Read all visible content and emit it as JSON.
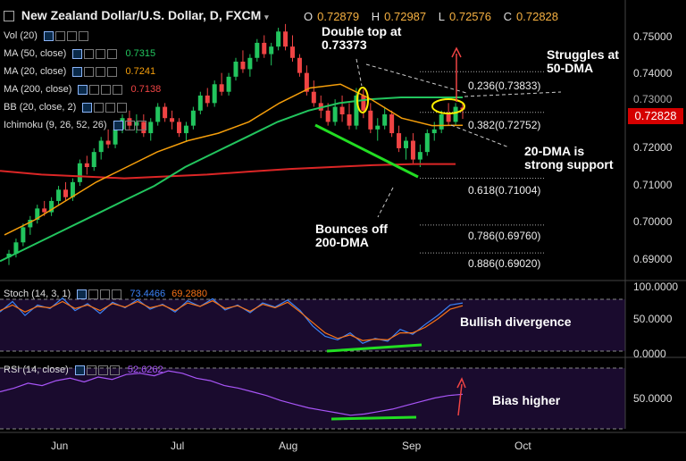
{
  "header": {
    "title": "New Zealand Dollar/U.S. Dollar, D, FXCM",
    "ohlc": {
      "o_label": "O",
      "o": "0.72879",
      "h_label": "H",
      "h": "0.72987",
      "l_label": "L",
      "l": "0.72576",
      "c_label": "C",
      "c": "0.72828"
    }
  },
  "indicators": {
    "vol": {
      "label": "Vol (20)"
    },
    "ma50": {
      "label": "MA (50, close)",
      "value": "0.7315",
      "color": "#22c55e"
    },
    "ma20": {
      "label": "MA (20, close)",
      "value": "0.7241",
      "color": "#f59e0b"
    },
    "ma200": {
      "label": "MA (200, close)",
      "value": "0.7138",
      "color": "#ef4444"
    },
    "bb": {
      "label": "BB (20, close, 2)"
    },
    "ichimoku": {
      "label": "Ichimoku (9, 26, 52, 26)"
    },
    "stoch": {
      "label": "Stoch (14, 3, 1)",
      "k": "73.4466",
      "d": "69.2880"
    },
    "rsi": {
      "label": "RSI (14, close)",
      "value": "52.6262"
    }
  },
  "annotations": {
    "double_top": "Double top at 0.73373",
    "struggles": "Struggles at 50-DMA",
    "support": "20-DMA is strong support",
    "bounces": "Bounces off 200-DMA",
    "divergence": "Bullish divergence",
    "bias": "Bias higher"
  },
  "fib_levels": [
    {
      "label": "0.236(0.73833)"
    },
    {
      "label": "0.382(0.72752)"
    },
    {
      "label": "0.618(0.71004)"
    },
    {
      "label": "0.786(0.69760)"
    },
    {
      "label": "0.886(0.69020)"
    }
  ],
  "price_axis": [
    "0.75000",
    "0.74000",
    "0.73000",
    "0.72000",
    "0.71000",
    "0.70000",
    "0.69000"
  ],
  "current_price": "0.72828",
  "stoch_axis": [
    "100.0000",
    "50.0000",
    "0.0000"
  ],
  "rsi_axis": [
    "50.0000"
  ],
  "x_axis": [
    "Jun",
    "Jul",
    "Aug",
    "Sep",
    "Oct"
  ],
  "colors": {
    "bull": "#22c55e",
    "bear": "#ef4444",
    "ma20": "#f59e0b",
    "ma50": "#22c55e",
    "ma200": "#dc2626",
    "stoch_k": "#3b82f6",
    "stoch_d": "#f97316",
    "rsi": "#a855f7",
    "panel_bg": "#1a0b2e",
    "trend": "#22dd22",
    "annotation": "#ffffff",
    "arrow": "#ef4444"
  },
  "chart_data": [
    {
      "type": "candlestick",
      "title": "New Zealand Dollar/U.S. Dollar, D, FXCM",
      "ylim": [
        0.685,
        0.755
      ],
      "x_ticks": [
        "Jun",
        "Jul",
        "Aug",
        "Sep",
        "Oct"
      ],
      "candles": [
        [
          0.689,
          0.691,
          0.687,
          0.69
        ],
        [
          0.69,
          0.694,
          0.689,
          0.693
        ],
        [
          0.693,
          0.698,
          0.692,
          0.697
        ],
        [
          0.697,
          0.7,
          0.695,
          0.699
        ],
        [
          0.699,
          0.703,
          0.698,
          0.702
        ],
        [
          0.702,
          0.704,
          0.7,
          0.701
        ],
        [
          0.701,
          0.705,
          0.7,
          0.704
        ],
        [
          0.704,
          0.708,
          0.703,
          0.707
        ],
        [
          0.707,
          0.709,
          0.704,
          0.705
        ],
        [
          0.705,
          0.71,
          0.704,
          0.709
        ],
        [
          0.709,
          0.715,
          0.708,
          0.714
        ],
        [
          0.714,
          0.716,
          0.711,
          0.713
        ],
        [
          0.713,
          0.718,
          0.712,
          0.717
        ],
        [
          0.717,
          0.721,
          0.715,
          0.72
        ],
        [
          0.72,
          0.723,
          0.718,
          0.719
        ],
        [
          0.719,
          0.724,
          0.718,
          0.723
        ],
        [
          0.723,
          0.727,
          0.722,
          0.726
        ],
        [
          0.726,
          0.728,
          0.723,
          0.724
        ],
        [
          0.724,
          0.727,
          0.722,
          0.725
        ],
        [
          0.725,
          0.727,
          0.721,
          0.722
        ],
        [
          0.722,
          0.726,
          0.72,
          0.725
        ],
        [
          0.725,
          0.73,
          0.724,
          0.729
        ],
        [
          0.729,
          0.73,
          0.725,
          0.726
        ],
        [
          0.726,
          0.728,
          0.723,
          0.725
        ],
        [
          0.725,
          0.726,
          0.721,
          0.722
        ],
        [
          0.722,
          0.725,
          0.72,
          0.724
        ],
        [
          0.724,
          0.729,
          0.723,
          0.728
        ],
        [
          0.728,
          0.733,
          0.727,
          0.732
        ],
        [
          0.732,
          0.734,
          0.729,
          0.73
        ],
        [
          0.73,
          0.736,
          0.729,
          0.735
        ],
        [
          0.735,
          0.738,
          0.732,
          0.733
        ],
        [
          0.733,
          0.738,
          0.732,
          0.737
        ],
        [
          0.737,
          0.742,
          0.736,
          0.741
        ],
        [
          0.741,
          0.744,
          0.738,
          0.739
        ],
        [
          0.739,
          0.743,
          0.737,
          0.742
        ],
        [
          0.742,
          0.747,
          0.741,
          0.746
        ],
        [
          0.746,
          0.748,
          0.742,
          0.743
        ],
        [
          0.743,
          0.746,
          0.74,
          0.745
        ],
        [
          0.745,
          0.75,
          0.744,
          0.749
        ],
        [
          0.749,
          0.751,
          0.744,
          0.745
        ],
        [
          0.745,
          0.748,
          0.741,
          0.742
        ],
        [
          0.742,
          0.743,
          0.737,
          0.738
        ],
        [
          0.738,
          0.74,
          0.732,
          0.733
        ],
        [
          0.733,
          0.736,
          0.729,
          0.73
        ],
        [
          0.73,
          0.732,
          0.726,
          0.728
        ],
        [
          0.728,
          0.73,
          0.724,
          0.725
        ],
        [
          0.725,
          0.731,
          0.724,
          0.729
        ],
        [
          0.729,
          0.732,
          0.725,
          0.727
        ],
        [
          0.727,
          0.73,
          0.723,
          0.724
        ],
        [
          0.724,
          0.734,
          0.723,
          0.732
        ],
        [
          0.732,
          0.7337,
          0.726,
          0.728
        ],
        [
          0.728,
          0.73,
          0.722,
          0.723
        ],
        [
          0.723,
          0.726,
          0.72,
          0.724
        ],
        [
          0.724,
          0.729,
          0.723,
          0.727
        ],
        [
          0.727,
          0.728,
          0.721,
          0.722
        ],
        [
          0.722,
          0.724,
          0.717,
          0.718
        ],
        [
          0.718,
          0.721,
          0.715,
          0.72
        ],
        [
          0.72,
          0.722,
          0.714,
          0.715
        ],
        [
          0.715,
          0.719,
          0.713,
          0.717
        ],
        [
          0.717,
          0.723,
          0.716,
          0.722
        ],
        [
          0.722,
          0.725,
          0.72,
          0.723
        ],
        [
          0.723,
          0.728,
          0.722,
          0.727
        ],
        [
          0.727,
          0.73,
          0.724,
          0.725
        ],
        [
          0.725,
          0.73,
          0.724,
          0.729
        ],
        [
          0.7288,
          0.7299,
          0.7258,
          0.7283
        ]
      ],
      "ma20": [
        0.695,
        0.699,
        0.704,
        0.709,
        0.713,
        0.717,
        0.72,
        0.722,
        0.725,
        0.73,
        0.734,
        0.735,
        0.731,
        0.726,
        0.724,
        0.7241
      ],
      "ma50": [
        0.688,
        0.692,
        0.696,
        0.7,
        0.704,
        0.708,
        0.713,
        0.717,
        0.721,
        0.725,
        0.728,
        0.73,
        0.731,
        0.7315,
        0.7315,
        0.7315
      ],
      "ma200": [
        0.712,
        0.711,
        0.7105,
        0.71,
        0.7105,
        0.711,
        0.7118,
        0.7125,
        0.713,
        0.7135,
        0.7138,
        0.7138
      ]
    },
    {
      "type": "line",
      "title": "Stoch (14, 3, 1)",
      "ylim": [
        0,
        100
      ],
      "series": [
        {
          "name": "%K",
          "values": [
            60,
            75,
            55,
            70,
            65,
            80,
            62,
            72,
            58,
            74,
            66,
            78,
            64,
            71,
            60,
            76,
            68,
            79,
            63,
            70,
            59,
            73,
            67,
            77,
            62,
            40,
            25,
            20,
            30,
            15,
            22,
            18,
            35,
            28,
            42,
            55,
            70,
            73
          ]
        },
        {
          "name": "%D",
          "values": [
            62,
            70,
            60,
            68,
            66,
            75,
            65,
            70,
            62,
            72,
            67,
            75,
            66,
            70,
            62,
            73,
            68,
            76,
            65,
            69,
            61,
            71,
            66,
            74,
            60,
            45,
            30,
            22,
            27,
            19,
            21,
            20,
            30,
            30,
            38,
            50,
            64,
            69
          ]
        }
      ]
    },
    {
      "type": "line",
      "title": "RSI (14, close)",
      "ylim": [
        25,
        80
      ],
      "series": [
        {
          "name": "RSI",
          "values": [
            55,
            58,
            62,
            60,
            64,
            66,
            63,
            67,
            65,
            69,
            70,
            68,
            72,
            70,
            66,
            64,
            60,
            58,
            55,
            52,
            48,
            45,
            42,
            40,
            38,
            36,
            37,
            39,
            41,
            44,
            47,
            50,
            52,
            53
          ]
        }
      ]
    }
  ]
}
